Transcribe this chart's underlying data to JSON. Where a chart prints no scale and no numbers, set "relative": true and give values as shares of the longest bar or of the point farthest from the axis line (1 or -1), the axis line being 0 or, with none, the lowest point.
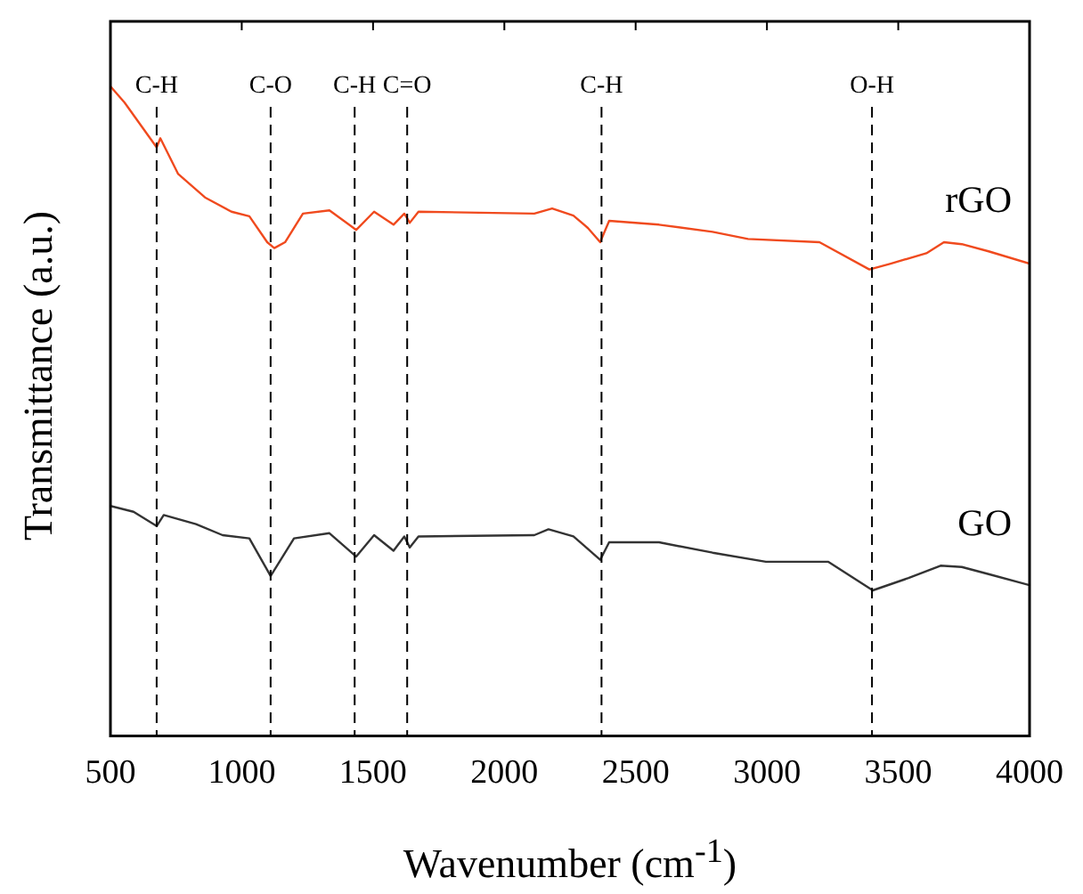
{
  "chart_data": {
    "type": "line",
    "relative": true,
    "xlabel": "Wavenumber (cm$^{-1}$)",
    "ylabel": "Transmittance (a.u.)",
    "xlim": [
      500,
      4000
    ],
    "xticks": [
      500,
      1000,
      1500,
      2000,
      2500,
      3000,
      3500,
      4000
    ],
    "grid": false,
    "legend": false,
    "marker": "none",
    "line_style": "solid",
    "series": [
      {
        "name": "rGO",
        "color": "#f04a1e",
        "x": [
          500,
          554,
          676,
          690,
          758,
          860,
          961,
          1029,
          1097,
          1124,
          1165,
          1233,
          1334,
          1436,
          1504,
          1578,
          1619,
          1640,
          1673,
          2114,
          2182,
          2263,
          2318,
          2365,
          2399,
          2589,
          2793,
          2928,
          3200,
          3390,
          3471,
          3607,
          3674,
          3742,
          3844,
          4000
        ],
        "values": [
          1.0,
          0.975,
          0.906,
          0.92,
          0.865,
          0.829,
          0.807,
          0.8,
          0.76,
          0.751,
          0.76,
          0.804,
          0.809,
          0.779,
          0.807,
          0.787,
          0.804,
          0.79,
          0.807,
          0.804,
          0.812,
          0.801,
          0.782,
          0.76,
          0.793,
          0.787,
          0.776,
          0.765,
          0.76,
          0.718,
          0.727,
          0.743,
          0.76,
          0.757,
          0.746,
          0.727
        ]
      },
      {
        "name": "GO",
        "color": "#333333",
        "x": [
          500,
          588,
          676,
          703,
          826,
          927,
          1029,
          1110,
          1199,
          1334,
          1436,
          1504,
          1578,
          1619,
          1640,
          1673,
          2114,
          2168,
          2263,
          2365,
          2399,
          2589,
          2793,
          2996,
          3234,
          3403,
          3539,
          3661,
          3742,
          3844,
          4000
        ],
        "values": [
          0.354,
          0.345,
          0.323,
          0.34,
          0.326,
          0.309,
          0.304,
          0.246,
          0.304,
          0.312,
          0.276,
          0.309,
          0.285,
          0.307,
          0.29,
          0.307,
          0.309,
          0.318,
          0.307,
          0.271,
          0.298,
          0.298,
          0.282,
          0.268,
          0.268,
          0.224,
          0.243,
          0.262,
          0.26,
          0.249,
          0.232
        ]
      }
    ],
    "ref_lines": [
      {
        "axis": "x",
        "value": 676,
        "label": "C-H",
        "line_style": "dashed"
      },
      {
        "axis": "x",
        "value": 1110,
        "label": "C-O",
        "line_style": "dashed"
      },
      {
        "axis": "x",
        "value": 1430,
        "label": "C-H",
        "line_style": "dashed"
      },
      {
        "axis": "x",
        "value": 1630,
        "label": "C=O",
        "line_style": "dashed"
      },
      {
        "axis": "x",
        "value": 2370,
        "label": "C-H",
        "line_style": "dashed"
      },
      {
        "axis": "x",
        "value": 3400,
        "label": "O-H",
        "line_style": "dashed"
      }
    ]
  }
}
